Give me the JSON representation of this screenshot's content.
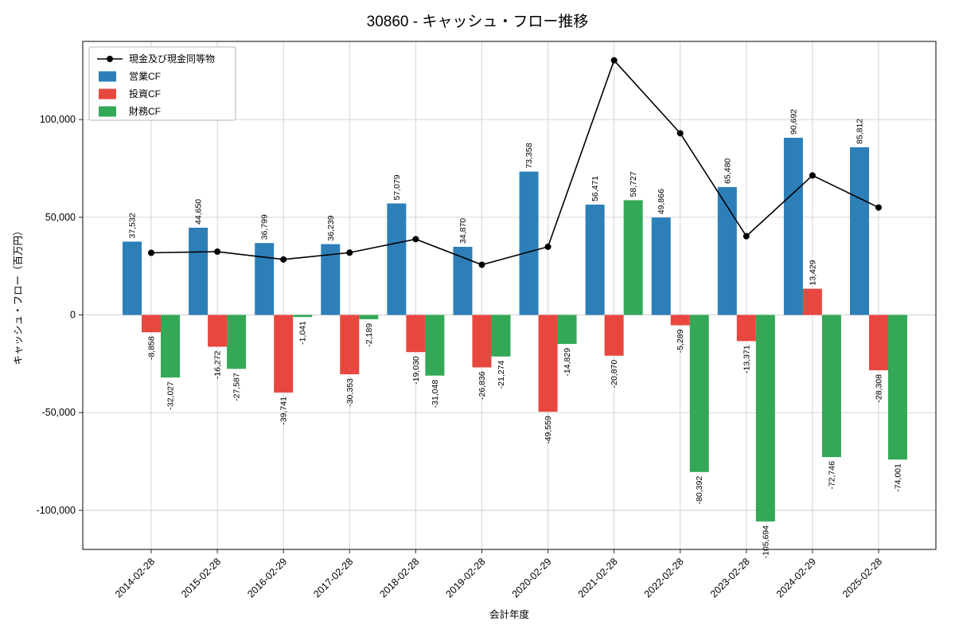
{
  "chart_data": {
    "type": "bar",
    "title": "30860 - キャッシュ・フロー推移",
    "xlabel": "会計年度",
    "ylabel": "キャッシュ・フロー（百万円）",
    "categories": [
      "2014-02-28",
      "2015-02-28",
      "2016-02-29",
      "2017-02-28",
      "2018-02-28",
      "2019-02-28",
      "2020-02-29",
      "2021-02-28",
      "2022-02-28",
      "2023-02-28",
      "2024-02-29",
      "2025-02-28"
    ],
    "series": [
      {
        "name": "現金及び現金同等物",
        "type": "line",
        "color": "#000000",
        "values": [
          31800,
          32400,
          28400,
          31900,
          38800,
          25700,
          34900,
          130300,
          93000,
          40300,
          71400,
          55000
        ]
      },
      {
        "name": "営業CF",
        "type": "bar",
        "color": "#2d7fb8",
        "values": [
          37532,
          44650,
          36799,
          36239,
          57079,
          34870,
          73358,
          56471,
          49866,
          65480,
          90692,
          85812
        ]
      },
      {
        "name": "投資CF",
        "type": "bar",
        "color": "#e8473f",
        "values": [
          -8858,
          -16272,
          -39741,
          -30353,
          -19030,
          -26836,
          -49559,
          -20870,
          -5289,
          -13371,
          13429,
          -28308
        ]
      },
      {
        "name": "財務CF",
        "type": "bar",
        "color": "#33a857",
        "values": [
          -32027,
          -27587,
          -1041,
          -2189,
          -31048,
          -21274,
          -14829,
          58727,
          -80392,
          -105694,
          -72746,
          -74001
        ]
      }
    ],
    "ylim": [
      -120000,
      140000
    ],
    "yticks": [
      -100000,
      -50000,
      0,
      50000,
      100000
    ],
    "grid": true,
    "legend_position": "upper left",
    "colors": {
      "grid": "#c9c9c9",
      "axis": "#2e2e2e",
      "background": "#ffffff"
    }
  }
}
